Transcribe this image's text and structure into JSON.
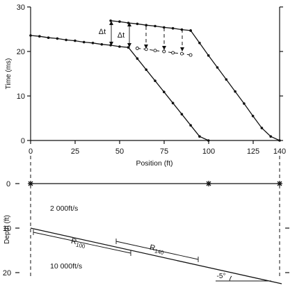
{
  "top_panel": {
    "y_label": "Time (ms)",
    "x_label": "Position (ft)",
    "y_ticks": [
      "0",
      "10",
      "20",
      "30"
    ],
    "x_ticks": [
      "0",
      "25",
      "50",
      "75",
      "100",
      "125",
      "140"
    ],
    "delta_label": "Δt"
  },
  "bottom_panel": {
    "y_label": "Depth (ft)",
    "y_ticks": [
      "0",
      "10",
      "20"
    ],
    "upper_velocity": "2 000ft/s",
    "lower_velocity": "10 000ft/s",
    "r100": {
      "main": "R",
      "sub": "100"
    },
    "r140": {
      "main": "R",
      "sub": "140"
    },
    "dip_label": "-5°"
  },
  "chart_data": {
    "type": "line",
    "xlabel": "Position (ft)",
    "ylabel": "Time (ms)",
    "xlim": [
      0,
      140
    ],
    "ylim": [
      0,
      30
    ],
    "series": [
      {
        "x": [
          0,
          5,
          10,
          15,
          20,
          25,
          30,
          35,
          40,
          45,
          50,
          55
        ],
        "y": [
          23.6,
          23.4,
          23.1,
          22.9,
          22.6,
          22.4,
          22.1,
          21.9,
          21.6,
          21.4,
          21.1,
          20.9
        ]
      },
      {
        "x": [
          55,
          60,
          65,
          70,
          75,
          80,
          85,
          90,
          95,
          100
        ],
        "y": [
          20.9,
          18.4,
          15.9,
          13.4,
          10.9,
          8.4,
          5.9,
          3.4,
          0.9,
          0
        ]
      },
      {
        "x": [
          45,
          50,
          55,
          60,
          65,
          70,
          75,
          80,
          85,
          90
        ],
        "y": [
          26.9,
          26.7,
          26.4,
          26.2,
          25.9,
          25.7,
          25.4,
          25.2,
          24.9,
          24.7
        ]
      },
      {
        "x": [
          90,
          95,
          100,
          105,
          110,
          115,
          120,
          125,
          130,
          135,
          140
        ],
        "y": [
          24.7,
          21.9,
          19.1,
          16.4,
          13.7,
          11.0,
          8.3,
          5.5,
          2.8,
          0.9,
          0
        ]
      },
      {
        "x": [
          60,
          65,
          70,
          75,
          80,
          85,
          90
        ],
        "y": [
          20.7,
          20.5,
          20.2,
          20.0,
          19.7,
          19.5,
          19.2
        ]
      }
    ]
  }
}
